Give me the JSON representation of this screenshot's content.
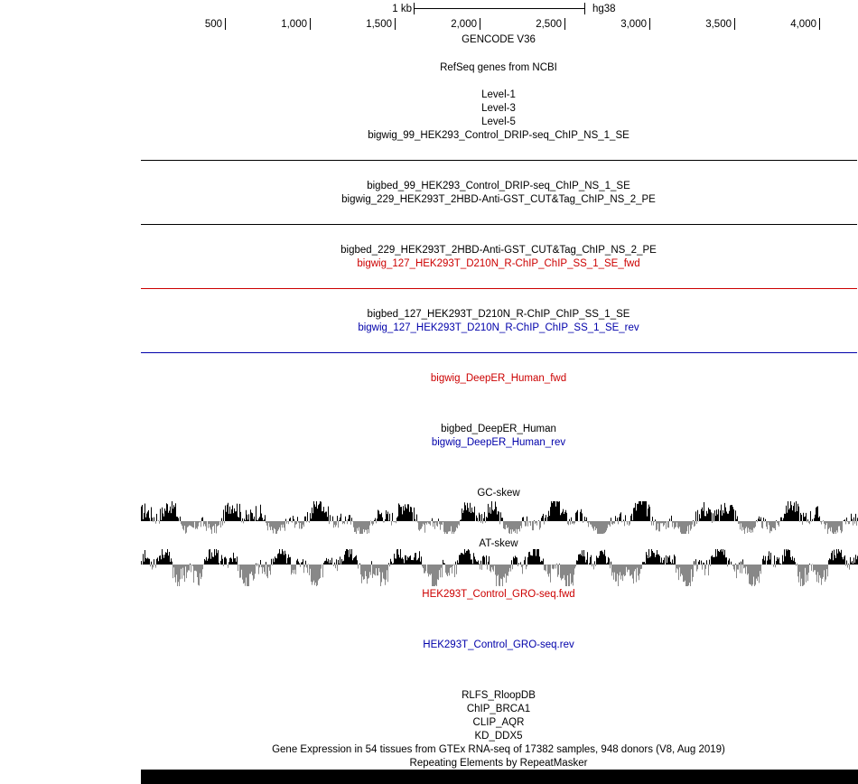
{
  "scale": {
    "label": "1 kb",
    "assembly": "hg38"
  },
  "ruler": [
    "500",
    "1,000",
    "1,500",
    "2,000",
    "2,500",
    "3,000",
    "3,500",
    "4,000"
  ],
  "tracks": {
    "gencode": "GENCODE V36",
    "refseq": "RefSeq genes from NCBI",
    "level1": "Level-1",
    "level3": "Level-3",
    "level5": "Level-5",
    "drip_bigwig": "bigwig_99_HEK293_Control_DRIP-seq_ChIP_NS_1_SE",
    "drip_bigbed": "bigbed_99_HEK293_Control_DRIP-seq_ChIP_NS_1_SE",
    "cut_bigwig": "bigwig_229_HEK293T_2HBD-Anti-GST_CUT&Tag_ChIP_NS_2_PE",
    "cut_bigbed": "bigbed_229_HEK293T_2HBD-Anti-GST_CUT&Tag_ChIP_NS_2_PE",
    "rchip_fwd": "bigwig_127_HEK293T_D210N_R-ChIP_ChIP_SS_1_SE_fwd",
    "rchip_bigbed": "bigbed_127_HEK293T_D210N_R-ChIP_ChIP_SS_1_SE",
    "rchip_rev": "bigwig_127_HEK293T_D210N_R-ChIP_ChIP_SS_1_SE_rev",
    "deeper_fwd": "bigwig_DeepER_Human_fwd",
    "deeper_bigbed": "bigbed_DeepER_Human",
    "deeper_rev": "bigwig_DeepER_Human_rev",
    "gc_skew": "GC-skew",
    "at_skew": "AT-skew",
    "gro_fwd": "HEK293T_Control_GRO-seq.fwd",
    "gro_rev": "HEK293T_Control_GRO-seq.rev",
    "rlfs": "RLFS_RloopDB",
    "chip_brca1": "ChIP_BRCA1",
    "clip_aqr": "CLIP_AQR",
    "kd_ddx5": "KD_DDX5",
    "gtex": "Gene Expression in 54 tissues from GTEx RNA-seq of 17382 samples, 948 donors (V8, Aug 2019)",
    "repeatmasker": "Repeating Elements by RepeatMasker"
  },
  "colors": {
    "text": "#000000",
    "fwd": "#cc0000",
    "rev": "#0000aa",
    "positive": "#000000",
    "negative": "#888888"
  }
}
